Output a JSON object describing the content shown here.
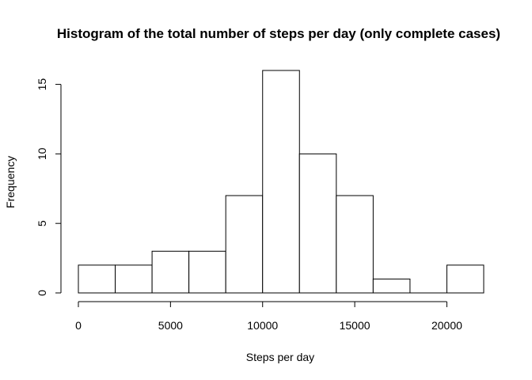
{
  "chart_data": {
    "type": "bar",
    "title": "Histogram of the total number of steps per day (only complete cases)",
    "xlabel": "Steps per day",
    "ylabel": "Frequency",
    "bins": [
      {
        "from": 0,
        "to": 2000,
        "count": 2
      },
      {
        "from": 2000,
        "to": 4000,
        "count": 2
      },
      {
        "from": 4000,
        "to": 6000,
        "count": 3
      },
      {
        "from": 6000,
        "to": 8000,
        "count": 3
      },
      {
        "from": 8000,
        "to": 10000,
        "count": 7
      },
      {
        "from": 10000,
        "to": 12000,
        "count": 16
      },
      {
        "from": 12000,
        "to": 14000,
        "count": 10
      },
      {
        "from": 14000,
        "to": 16000,
        "count": 7
      },
      {
        "from": 16000,
        "to": 18000,
        "count": 1
      },
      {
        "from": 18000,
        "to": 20000,
        "count": 0
      },
      {
        "from": 20000,
        "to": 22000,
        "count": 2
      }
    ],
    "xlim": [
      0,
      22000
    ],
    "ylim": [
      0,
      16
    ],
    "x_ticks": [
      0,
      5000,
      10000,
      15000,
      20000
    ],
    "y_ticks": [
      0,
      5,
      10,
      15
    ],
    "grid": false,
    "bar_fill": "#ffffff",
    "bar_stroke": "#000000"
  }
}
